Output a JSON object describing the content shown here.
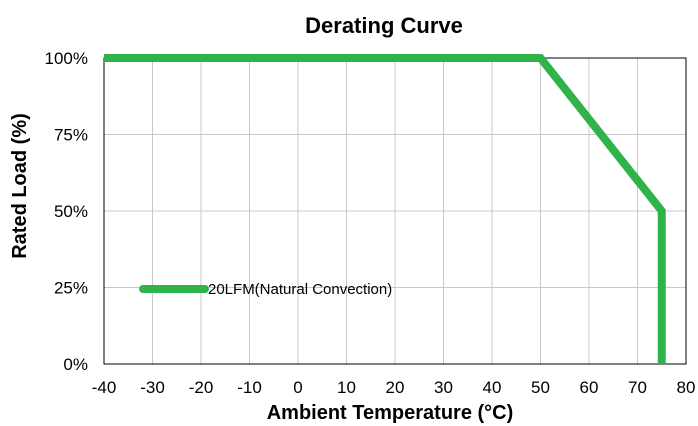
{
  "chart_data": {
    "type": "line",
    "title": "Derating Curve",
    "xlabel": "Ambient Temperature (°C)",
    "ylabel": "Rated Load  (%)",
    "xlim": [
      -40,
      80
    ],
    "ylim": [
      0,
      100
    ],
    "x_ticks": [
      "-40",
      "-30",
      "-20",
      "-10",
      "0",
      "10",
      "20",
      "30",
      "40",
      "50",
      "60",
      "70",
      "80"
    ],
    "y_ticks": [
      "0%",
      "25%",
      "50%",
      "75%",
      "100%"
    ],
    "grid": true,
    "legend_position": "lower-left",
    "series": [
      {
        "name": "20LFM(Natural Convection)",
        "color": "#2fb34a",
        "x": [
          -40,
          50,
          75,
          75
        ],
        "y": [
          100,
          100,
          50,
          0
        ]
      }
    ]
  }
}
